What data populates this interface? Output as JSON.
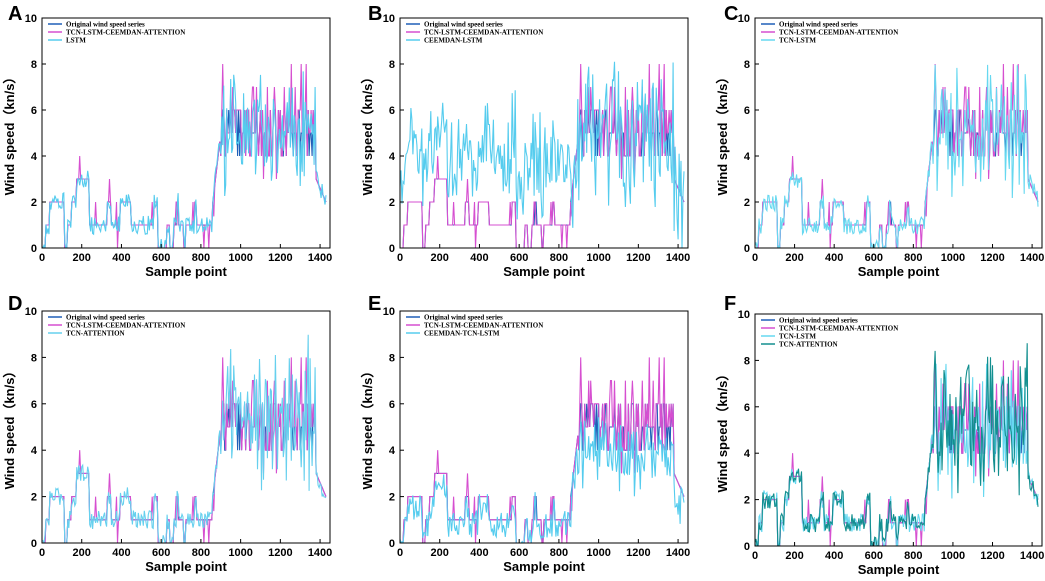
{
  "figure": {
    "colors": {
      "original": "#1f5fb8",
      "proposed": "#d64fd0",
      "lstm": "#55ccee",
      "ceemdan_lstm": "#55ccee",
      "tcn_lstm": "#66d8f0",
      "tcn_attention": "#66d0ee",
      "ceemdan_tcn_lstm": "#55ccee",
      "tcn_attention_f": "#138f8f",
      "axes": "#000000"
    }
  },
  "chart_data": [
    {
      "panel": "A",
      "type": "line",
      "xlabel": "Sample point",
      "ylabel": "Wind speed（kn/s）",
      "xlim": [
        0,
        1450
      ],
      "ylim": [
        0,
        10
      ],
      "xticks": [
        0,
        200,
        400,
        600,
        800,
        1000,
        1200,
        1400
      ],
      "yticks": [
        0,
        2,
        4,
        6,
        8,
        10
      ],
      "legend": [
        "Original wind speed series",
        "TCN-LSTM-CEEMDAN-ATTENTION",
        "LSTM"
      ],
      "series_keys": [
        "original",
        "proposed",
        "lstm"
      ],
      "comparison_profile": "lstm"
    },
    {
      "panel": "B",
      "type": "line",
      "xlabel": "Sample point",
      "ylabel": "Wind speed（kn/s）",
      "xlim": [
        0,
        1450
      ],
      "ylim": [
        0,
        10
      ],
      "xticks": [
        0,
        200,
        400,
        600,
        800,
        1000,
        1200,
        1400
      ],
      "yticks": [
        0,
        2,
        4,
        6,
        8,
        10
      ],
      "legend": [
        "Original wind speed series",
        "TCN-LSTM-CEEMDAN-ATTENTION",
        "CEEMDAN-LSTM"
      ],
      "series_keys": [
        "original",
        "proposed",
        "ceemdan_lstm"
      ],
      "comparison_profile": "noisy_high"
    },
    {
      "panel": "C",
      "type": "line",
      "xlabel": "Sample point",
      "ylabel": "Wind speed（kn/s）",
      "xlim": [
        0,
        1450
      ],
      "ylim": [
        0,
        10
      ],
      "xticks": [
        0,
        200,
        400,
        600,
        800,
        1000,
        1200,
        1400
      ],
      "yticks": [
        0,
        2,
        4,
        6,
        8,
        10
      ],
      "legend": [
        "Original wind speed series",
        "TCN-LSTM-CEEMDAN-ATTENTION",
        "TCN-LSTM"
      ],
      "series_keys": [
        "original",
        "proposed",
        "tcn_lstm"
      ],
      "comparison_profile": "lstm"
    },
    {
      "panel": "D",
      "type": "line",
      "xlabel": "Sample point",
      "ylabel": "Wind speed（kn/s）",
      "xlim": [
        0,
        1450
      ],
      "ylim": [
        0,
        10
      ],
      "xticks": [
        0,
        200,
        400,
        600,
        800,
        1000,
        1200,
        1400
      ],
      "yticks": [
        0,
        2,
        4,
        6,
        8,
        10
      ],
      "legend": [
        "Original wind speed series",
        "TCN-LSTM-CEEMDAN-ATTENTION",
        "TCN-ATTENTION"
      ],
      "series_keys": [
        "original",
        "proposed",
        "tcn_attention"
      ],
      "comparison_profile": "attention"
    },
    {
      "panel": "E",
      "type": "line",
      "xlabel": "Sample point",
      "ylabel": "Wind speed（kn/s）",
      "xlim": [
        0,
        1450
      ],
      "ylim": [
        0,
        10
      ],
      "xticks": [
        0,
        200,
        400,
        600,
        800,
        1000,
        1200,
        1400
      ],
      "yticks": [
        0,
        2,
        4,
        6,
        8,
        10
      ],
      "legend": [
        "Original wind speed series",
        "TCN-LSTM-CEEMDAN-ATTENTION",
        "CEEMDAN-TCN-LSTM"
      ],
      "series_keys": [
        "original",
        "proposed",
        "ceemdan_tcn_lstm"
      ],
      "comparison_profile": "smooth_low"
    },
    {
      "panel": "F",
      "type": "line",
      "xlabel": "Sample point",
      "ylabel": "Wind speed（kn/s）",
      "xlim": [
        0,
        1450
      ],
      "ylim": [
        0,
        10
      ],
      "xticks": [
        0,
        200,
        400,
        600,
        800,
        1000,
        1200,
        1400
      ],
      "yticks": [
        0,
        2,
        4,
        6,
        8,
        10
      ],
      "legend": [
        "Original wind speed series",
        "TCN-LSTM-CEEMDAN-ATTENTION",
        "TCN-LSTM",
        "TCN-ATTENTION"
      ],
      "series_keys": [
        "original",
        "proposed",
        "tcn_lstm",
        "tcn_attention_f"
      ],
      "comparison_profile": "multi"
    }
  ]
}
